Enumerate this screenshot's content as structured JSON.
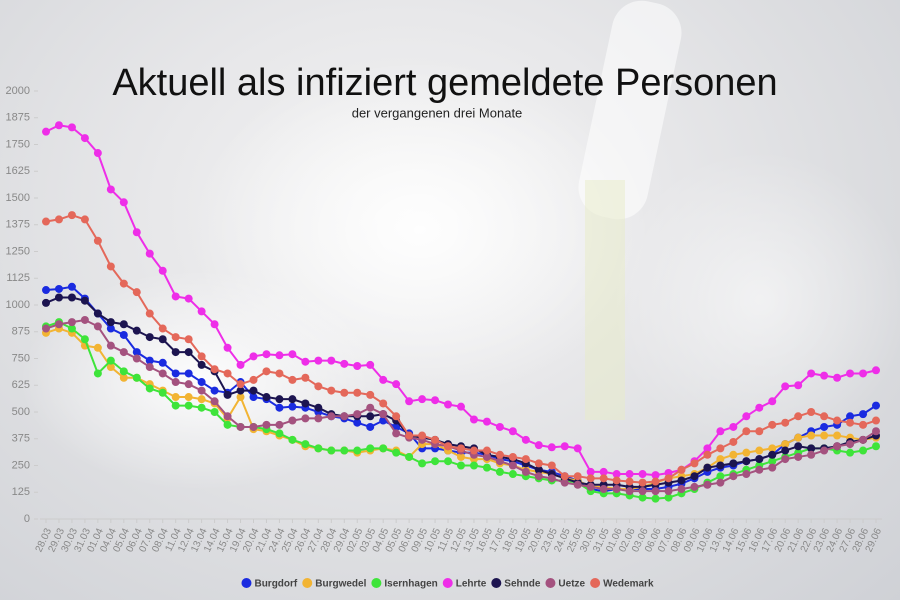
{
  "chart_data": {
    "type": "line",
    "title": "Aktuell als infiziert gemeldete Personen",
    "subtitle": "der vergangenen drei Monate",
    "categories": [
      "28.03",
      "29.03",
      "30.03",
      "31.03",
      "01.04",
      "04.04",
      "05.04",
      "06.04",
      "07.04",
      "08.04",
      "11.04",
      "12.04",
      "13.04",
      "14.04",
      "15.04",
      "19.04",
      "20.04",
      "21.04",
      "24.04",
      "25.04",
      "26.04",
      "27.04",
      "28.04",
      "29.04",
      "02.05",
      "03.05",
      "04.05",
      "05.05",
      "06.05",
      "09.05",
      "10.05",
      "11.05",
      "12.05",
      "13.05",
      "16.05",
      "17.05",
      "18.05",
      "19.05",
      "20.05",
      "23.05",
      "24.05",
      "25.05",
      "30.05",
      "31.05",
      "01.06",
      "02.06",
      "03.06",
      "06.06",
      "07.06",
      "08.06",
      "09.06",
      "10.06",
      "13.06",
      "14.06",
      "15.06",
      "16.06",
      "17.06",
      "20.06",
      "21.06",
      "22.06",
      "23.06",
      "24.06",
      "27.06",
      "28.06",
      "29.06"
    ],
    "ylim": [
      0,
      2000
    ],
    "yticks": [
      0,
      125,
      250,
      375,
      500,
      625,
      750,
      875,
      1000,
      1125,
      1250,
      1375,
      1500,
      1625,
      1750,
      1875,
      2000
    ],
    "series": [
      {
        "name": "Burgdorf",
        "color": "#1a2be0",
        "values": [
          1070,
          1075,
          1085,
          1030,
          960,
          890,
          860,
          780,
          740,
          730,
          680,
          680,
          640,
          600,
          590,
          640,
          570,
          560,
          520,
          525,
          520,
          500,
          480,
          470,
          450,
          430,
          460,
          430,
          400,
          330,
          330,
          320,
          310,
          310,
          300,
          280,
          270,
          250,
          230,
          220,
          200,
          180,
          140,
          130,
          140,
          140,
          140,
          140,
          150,
          165,
          190,
          220,
          240,
          250,
          270,
          280,
          300,
          350,
          380,
          410,
          430,
          440,
          480,
          490,
          530
        ]
      },
      {
        "name": "Burgwedel",
        "color": "#f2b433",
        "values": [
          870,
          890,
          870,
          810,
          800,
          710,
          660,
          660,
          630,
          600,
          570,
          570,
          560,
          540,
          470,
          570,
          420,
          410,
          390,
          370,
          340,
          330,
          320,
          320,
          310,
          320,
          330,
          320,
          290,
          350,
          350,
          320,
          290,
          280,
          280,
          260,
          250,
          230,
          220,
          210,
          190,
          180,
          150,
          150,
          140,
          140,
          150,
          170,
          190,
          200,
          210,
          240,
          280,
          300,
          310,
          320,
          330,
          350,
          380,
          390,
          390,
          390,
          380,
          370,
          380
        ]
      },
      {
        "name": "Isernhagen",
        "color": "#3ee43a",
        "values": [
          900,
          920,
          890,
          840,
          680,
          740,
          690,
          660,
          610,
          590,
          530,
          530,
          520,
          500,
          440,
          430,
          430,
          420,
          400,
          370,
          350,
          330,
          320,
          320,
          320,
          330,
          330,
          310,
          290,
          260,
          270,
          270,
          250,
          250,
          240,
          220,
          210,
          200,
          190,
          180,
          180,
          170,
          130,
          120,
          120,
          110,
          100,
          95,
          100,
          120,
          140,
          170,
          200,
          210,
          230,
          250,
          270,
          290,
          310,
          330,
          330,
          320,
          310,
          320,
          340
        ]
      },
      {
        "name": "Lehrte",
        "color": "#ee2ee8",
        "values": [
          1810,
          1840,
          1830,
          1780,
          1710,
          1540,
          1480,
          1340,
          1240,
          1160,
          1040,
          1030,
          970,
          910,
          800,
          720,
          760,
          770,
          765,
          770,
          735,
          740,
          740,
          725,
          715,
          720,
          650,
          630,
          550,
          560,
          555,
          535,
          525,
          465,
          455,
          430,
          410,
          370,
          345,
          335,
          340,
          330,
          220,
          220,
          210,
          210,
          210,
          205,
          215,
          230,
          270,
          330,
          410,
          430,
          480,
          520,
          550,
          620,
          625,
          680,
          670,
          660,
          680,
          680,
          695
        ]
      },
      {
        "name": "Sehnde",
        "color": "#1c1450",
        "values": [
          1010,
          1035,
          1035,
          1020,
          960,
          920,
          910,
          880,
          850,
          840,
          780,
          780,
          720,
          690,
          580,
          600,
          600,
          570,
          560,
          560,
          540,
          520,
          490,
          480,
          480,
          480,
          490,
          460,
          390,
          380,
          370,
          350,
          340,
          330,
          300,
          290,
          280,
          260,
          230,
          210,
          190,
          170,
          160,
          160,
          160,
          150,
          150,
          160,
          170,
          180,
          200,
          240,
          250,
          260,
          270,
          280,
          300,
          320,
          340,
          330,
          330,
          340,
          360,
          370,
          390
        ]
      },
      {
        "name": "Uetze",
        "color": "#a4527f",
        "values": [
          890,
          910,
          920,
          930,
          900,
          810,
          780,
          750,
          710,
          680,
          640,
          630,
          600,
          550,
          480,
          430,
          430,
          440,
          440,
          460,
          470,
          470,
          480,
          480,
          490,
          520,
          490,
          400,
          380,
          370,
          350,
          340,
          320,
          300,
          290,
          270,
          250,
          220,
          200,
          190,
          170,
          160,
          150,
          140,
          140,
          130,
          130,
          130,
          130,
          140,
          150,
          160,
          170,
          200,
          210,
          230,
          240,
          280,
          290,
          300,
          320,
          340,
          350,
          370,
          410
        ]
      },
      {
        "name": "Wedemark",
        "color": "#e4685a",
        "values": [
          1390,
          1400,
          1420,
          1400,
          1300,
          1180,
          1100,
          1060,
          960,
          890,
          850,
          840,
          760,
          700,
          680,
          630,
          650,
          690,
          680,
          650,
          660,
          620,
          600,
          590,
          590,
          580,
          540,
          480,
          390,
          390,
          370,
          340,
          330,
          320,
          320,
          300,
          290,
          280,
          260,
          250,
          200,
          200,
          190,
          190,
          180,
          175,
          170,
          175,
          190,
          230,
          260,
          300,
          330,
          360,
          410,
          410,
          440,
          450,
          480,
          500,
          480,
          460,
          450,
          440,
          460
        ]
      }
    ]
  }
}
